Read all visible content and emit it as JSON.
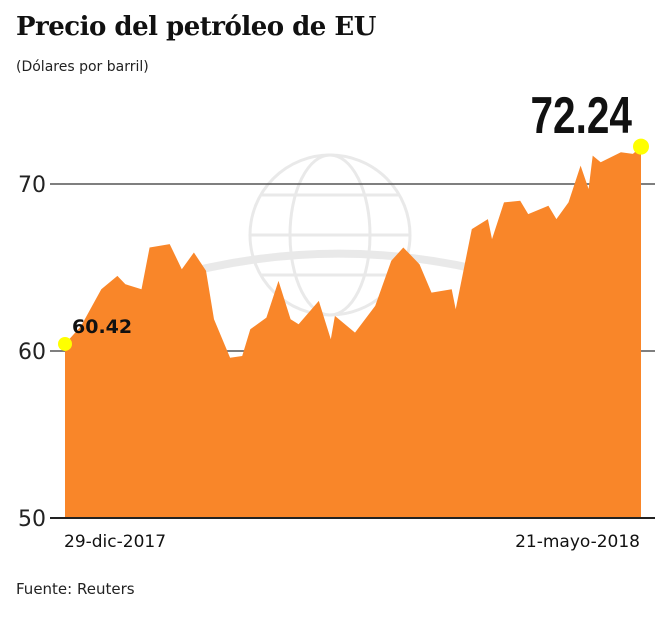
{
  "chart_data": {
    "type": "area",
    "title": "Precio del petróleo de EU",
    "subtitle": "(Dólares por barril)",
    "source": "Fuente: Reuters",
    "ylim": [
      50,
      73
    ],
    "yticks": [
      50,
      60,
      70
    ],
    "grid": true,
    "x_tick_labels": [
      "29-dic-2017",
      "21-mayo-2018"
    ],
    "color": "#f98629",
    "highlight_color": "#ffff00",
    "annotations": [
      {
        "label": "60.42",
        "x": "2017-12-29",
        "y": 60.42
      },
      {
        "label": "72.24",
        "x": "2018-05-21",
        "y": 72.24
      }
    ],
    "x": [
      "2017-12-29",
      "2018-01-02",
      "2018-01-07",
      "2018-01-11",
      "2018-01-13",
      "2018-01-17",
      "2018-01-19",
      "2018-01-24",
      "2018-01-27",
      "2018-01-30",
      "2018-02-02",
      "2018-02-04",
      "2018-02-08",
      "2018-02-11",
      "2018-02-13",
      "2018-02-17",
      "2018-02-20",
      "2018-02-23",
      "2018-02-25",
      "2018-03-02",
      "2018-03-05",
      "2018-03-06",
      "2018-03-11",
      "2018-03-16",
      "2018-03-20",
      "2018-03-23",
      "2018-03-27",
      "2018-03-30",
      "2018-04-04",
      "2018-04-05",
      "2018-04-09",
      "2018-04-13",
      "2018-04-14",
      "2018-04-17",
      "2018-04-21",
      "2018-04-23",
      "2018-04-28",
      "2018-04-30",
      "2018-05-03",
      "2018-05-06",
      "2018-05-08",
      "2018-05-09",
      "2018-05-11",
      "2018-05-16",
      "2018-05-19",
      "2018-05-21"
    ],
    "values": [
      60.42,
      61.5,
      63.7,
      64.5,
      64.0,
      63.7,
      66.2,
      66.4,
      64.9,
      65.9,
      64.8,
      61.9,
      59.6,
      59.7,
      61.3,
      62.0,
      64.2,
      61.9,
      61.6,
      63.0,
      60.7,
      62.1,
      61.1,
      62.7,
      65.4,
      66.2,
      65.2,
      63.5,
      63.7,
      62.5,
      67.3,
      67.9,
      66.7,
      68.9,
      69.0,
      68.2,
      68.7,
      67.9,
      68.9,
      71.1,
      69.7,
      71.7,
      71.3,
      71.9,
      71.8,
      72.24
    ]
  }
}
